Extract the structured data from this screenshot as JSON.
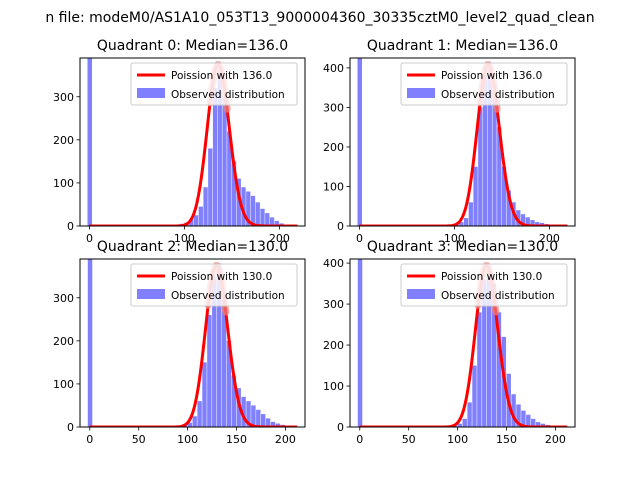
{
  "figure": {
    "suptitle": "n file: modeM0/AS1A10_053T13_9000004360_30335cztM0_level2_quad_clean"
  },
  "colors": {
    "hist": "#8080ff",
    "poisson": "#ff0000",
    "poisson_peak_fill": "#f08080"
  },
  "chart_data": [
    {
      "type": "bar",
      "title": "Quadrant 0: Median=136.0",
      "median": 136.0,
      "xlim": [
        -10,
        227
      ],
      "ylim": [
        0,
        390
      ],
      "xticks": [
        0,
        100,
        200
      ],
      "yticks": [
        0,
        100,
        200,
        300
      ],
      "legend": {
        "placement": "top-right",
        "line_label": "Poission with 136.0",
        "hist_label": "Observed distribution"
      },
      "bin_width": 4.5,
      "spike": {
        "x": 0,
        "value": 390
      },
      "bins": [
        [
          85,
          2
        ],
        [
          90,
          3
        ],
        [
          95,
          5
        ],
        [
          100,
          8
        ],
        [
          105,
          15
        ],
        [
          110,
          25
        ],
        [
          115,
          45
        ],
        [
          120,
          90
        ],
        [
          125,
          180
        ],
        [
          130,
          320
        ],
        [
          135,
          360
        ],
        [
          140,
          300
        ],
        [
          145,
          220
        ],
        [
          150,
          150
        ],
        [
          155,
          110
        ],
        [
          160,
          90
        ],
        [
          165,
          80
        ],
        [
          170,
          70
        ],
        [
          175,
          55
        ],
        [
          180,
          40
        ],
        [
          185,
          30
        ],
        [
          190,
          20
        ],
        [
          195,
          12
        ],
        [
          200,
          6
        ],
        [
          205,
          3
        ],
        [
          210,
          2
        ],
        [
          215,
          1
        ]
      ]
    },
    {
      "type": "bar",
      "title": "Quadrant 1: Median=136.0",
      "median": 136.0,
      "xlim": [
        -10,
        227
      ],
      "ylim": [
        0,
        425
      ],
      "xticks": [
        0,
        100,
        200
      ],
      "yticks": [
        0,
        100,
        200,
        300,
        400
      ],
      "legend": {
        "placement": "top-right",
        "line_label": "Poission with 136.0",
        "hist_label": "Observed distribution"
      },
      "bin_width": 4.5,
      "spike": {
        "x": 0,
        "value": 425
      },
      "bins": [
        [
          95,
          3
        ],
        [
          100,
          5
        ],
        [
          105,
          10
        ],
        [
          110,
          20
        ],
        [
          115,
          60
        ],
        [
          120,
          150
        ],
        [
          125,
          300
        ],
        [
          130,
          380
        ],
        [
          135,
          400
        ],
        [
          140,
          360
        ],
        [
          145,
          250
        ],
        [
          150,
          150
        ],
        [
          155,
          90
        ],
        [
          160,
          60
        ],
        [
          165,
          40
        ],
        [
          170,
          30
        ],
        [
          175,
          22
        ],
        [
          180,
          15
        ],
        [
          185,
          10
        ],
        [
          190,
          8
        ],
        [
          195,
          5
        ],
        [
          200,
          3
        ],
        [
          205,
          2
        ],
        [
          210,
          1
        ]
      ]
    },
    {
      "type": "bar",
      "title": "Quadrant 2: Median=130.0",
      "median": 130.0,
      "xlim": [
        -10,
        220
      ],
      "ylim": [
        0,
        390
      ],
      "xticks": [
        0,
        50,
        100,
        150,
        200
      ],
      "yticks": [
        0,
        100,
        200,
        300
      ],
      "legend": {
        "placement": "top-right",
        "line_label": "Poission with 130.0",
        "hist_label": "Observed distribution"
      },
      "bin_width": 4.5,
      "spike": {
        "x": 0,
        "value": 390
      },
      "bins": [
        [
          75,
          2
        ],
        [
          85,
          3
        ],
        [
          95,
          5
        ],
        [
          100,
          10
        ],
        [
          105,
          25
        ],
        [
          110,
          60
        ],
        [
          115,
          150
        ],
        [
          120,
          260
        ],
        [
          125,
          350
        ],
        [
          130,
          380
        ],
        [
          135,
          300
        ],
        [
          140,
          200
        ],
        [
          145,
          120
        ],
        [
          150,
          90
        ],
        [
          155,
          70
        ],
        [
          160,
          60
        ],
        [
          165,
          50
        ],
        [
          170,
          40
        ],
        [
          175,
          30
        ],
        [
          180,
          20
        ],
        [
          185,
          12
        ],
        [
          190,
          8
        ],
        [
          195,
          5
        ],
        [
          200,
          3
        ],
        [
          205,
          2
        ]
      ]
    },
    {
      "type": "bar",
      "title": "Quadrant 3: Median=130.0",
      "median": 130.0,
      "xlim": [
        -10,
        220
      ],
      "ylim": [
        0,
        410
      ],
      "xticks": [
        0,
        50,
        100,
        150,
        200
      ],
      "yticks": [
        0,
        100,
        200,
        300,
        400
      ],
      "legend": {
        "placement": "top-right",
        "line_label": "Poission with 130.0",
        "hist_label": "Observed distribution"
      },
      "bin_width": 4.5,
      "spike": {
        "x": 0,
        "value": 410
      },
      "bins": [
        [
          95,
          3
        ],
        [
          100,
          8
        ],
        [
          105,
          20
        ],
        [
          110,
          60
        ],
        [
          115,
          150
        ],
        [
          120,
          280
        ],
        [
          125,
          360
        ],
        [
          130,
          390
        ],
        [
          135,
          350
        ],
        [
          140,
          280
        ],
        [
          145,
          220
        ],
        [
          150,
          130
        ],
        [
          155,
          80
        ],
        [
          160,
          55
        ],
        [
          165,
          40
        ],
        [
          170,
          30
        ],
        [
          175,
          20
        ],
        [
          180,
          12
        ],
        [
          185,
          8
        ],
        [
          190,
          5
        ],
        [
          195,
          3
        ],
        [
          200,
          2
        ],
        [
          205,
          1
        ]
      ]
    }
  ]
}
